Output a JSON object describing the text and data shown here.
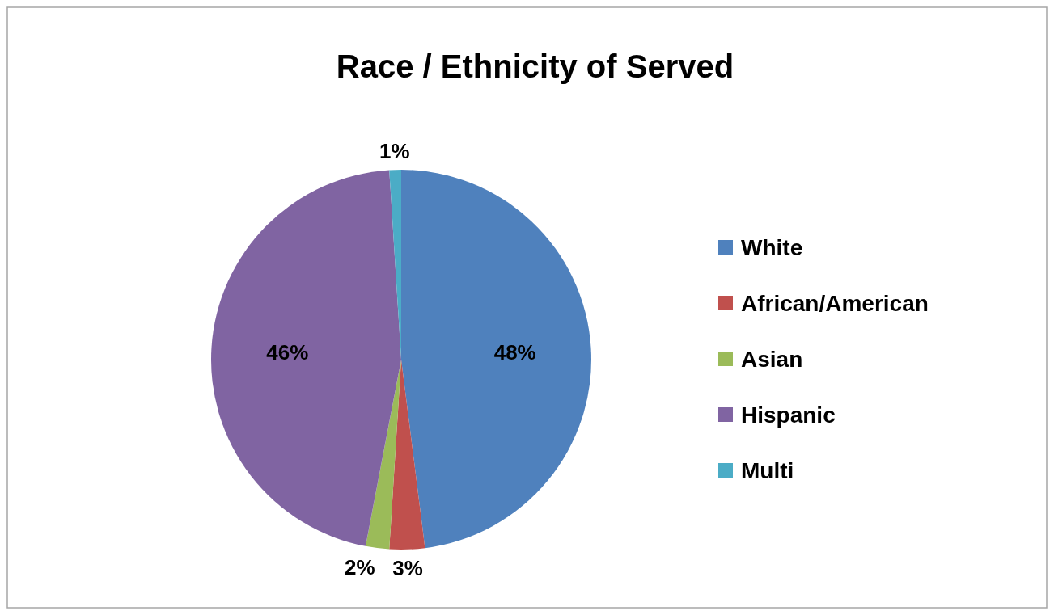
{
  "chart_data": {
    "type": "pie",
    "title": "Race / Ethnicity of Served",
    "categories": [
      "White",
      "African/American",
      "Asian",
      "Hispanic",
      "Multi"
    ],
    "values": [
      48,
      3,
      2,
      46,
      1
    ],
    "colors": [
      "#4f81bd",
      "#c0504d",
      "#9bbb59",
      "#8064a2",
      "#4bacc6"
    ],
    "value_labels": [
      "48%",
      "3%",
      "2%",
      "46%",
      "1%"
    ],
    "legend": "right"
  }
}
